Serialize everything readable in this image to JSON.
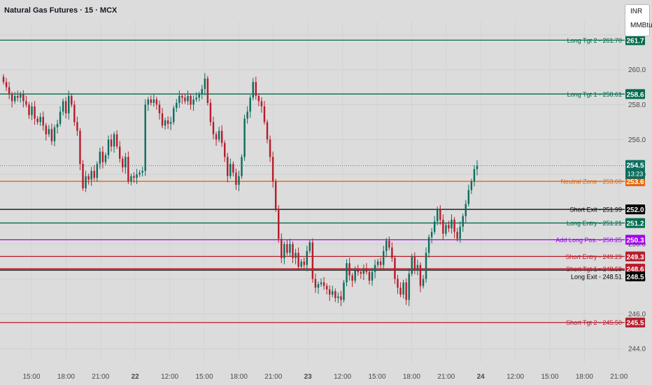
{
  "header": {
    "title": "Natural Gas Futures · 15 · MCX",
    "units": [
      "INR",
      "MMBtu"
    ]
  },
  "chart_data": {
    "type": "candlestick",
    "title": "Natural Gas Futures · 15 · MCX",
    "ylim": [
      243.2,
      262.8
    ],
    "y_ticks": [
      "244.0",
      "246.0",
      "248.0",
      "250.0",
      "252.0",
      "254.0",
      "256.0",
      "258.0",
      "260.0",
      "262.0"
    ],
    "x_ticks": [
      "15:00",
      "18:00",
      "21:00",
      "22",
      "12:00",
      "15:00",
      "18:00",
      "21:00",
      "23",
      "12:00",
      "15:00",
      "18:00",
      "21:00",
      "24",
      "12:00",
      "15:00",
      "18:00",
      "21:00"
    ],
    "grid": true,
    "colors": {
      "up": "#0d6e5f",
      "down": "#b71c2c",
      "background": "#dcdcdc"
    },
    "levels": [
      {
        "label": "Long Tgt 2 - 261.70",
        "value": 261.7,
        "tag": "261.7",
        "color": "#006b4e",
        "text_color": "#006b4e",
        "tag_text": "#ffffff"
      },
      {
        "label": "Long Tgt 1 - 258.61",
        "value": 258.61,
        "tag": "258.6",
        "color": "#006b4e",
        "text_color": "#006b4e",
        "tag_text": "#ffffff"
      },
      {
        "label": "Neutral Zone - 253.60",
        "value": 253.6,
        "tag": "253.6",
        "color": "#e8650a",
        "text_color": "#e8650a",
        "tag_text": "#ffffff"
      },
      {
        "label": "Short Exit - 251.99",
        "value": 251.99,
        "tag": "252.0",
        "color": "#000000",
        "text_color": "#000000",
        "tag_text": "#ffffff"
      },
      {
        "label": "Long Entry - 251.21",
        "value": 251.21,
        "tag": "251.2",
        "color": "#006b4e",
        "text_color": "#006b4e",
        "tag_text": "#ffffff"
      },
      {
        "label": "Add Long Pos. - 250.25",
        "value": 250.25,
        "tag": "250.3",
        "color": "#a100f2",
        "text_color": "#a100f2",
        "tag_text": "#ffffff"
      },
      {
        "label": "Short Entry - 249.29",
        "value": 249.29,
        "tag": "249.3",
        "color": "#b71c2c",
        "text_color": "#b71c2c",
        "tag_text": "#ffffff"
      },
      {
        "label": "Short Tgt 1 - 248.59",
        "value": 248.59,
        "tag": "248.6",
        "color": "#b71c2c",
        "text_color": "#b71c2c",
        "tag_text": "#ffffff"
      },
      {
        "label": "Long Exit - 248.51",
        "value": 248.51,
        "tag": "248.5",
        "color": "#000000",
        "text_color": "#000000",
        "tag_text": "#ffffff"
      },
      {
        "label": "Short Tgt 2 - 245.50",
        "value": 245.5,
        "tag": "245.5",
        "color": "#b71c2c",
        "text_color": "#b71c2c",
        "tag_text": "#ffffff"
      }
    ],
    "last_price": {
      "value": 254.5,
      "tag": "254.5",
      "countdown": "13:23",
      "color": "#0d6e5f"
    },
    "candles_close": [
      259.3,
      259.0,
      258.6,
      258.2,
      258.5,
      258.4,
      258.6,
      258.2,
      258.0,
      257.4,
      257.9,
      257.2,
      257.0,
      257.3,
      256.8,
      256.3,
      256.6,
      255.9,
      256.7,
      256.9,
      257.6,
      258.2,
      257.5,
      258.5,
      258.0,
      257.0,
      256.5,
      254.6,
      253.2,
      253.9,
      253.7,
      254.2,
      253.8,
      254.6,
      255.3,
      254.7,
      255.1,
      256.0,
      255.6,
      256.3,
      255.6,
      254.9,
      254.4,
      255.0,
      253.6,
      253.9,
      253.8,
      254.0,
      254.1,
      254.2,
      258.0,
      258.3,
      258.1,
      258.3,
      258.0,
      257.5,
      256.8,
      257.1,
      256.9,
      257.0,
      257.8,
      258.1,
      258.5,
      258.4,
      258.2,
      258.5,
      258.0,
      258.3,
      258.4,
      258.6,
      258.9,
      259.5,
      258.1,
      257.0,
      256.3,
      256.0,
      256.5,
      255.8,
      255.0,
      253.9,
      254.6,
      254.1,
      253.4,
      253.9,
      255.0,
      257.2,
      257.6,
      258.4,
      259.3,
      258.5,
      258.2,
      257.9,
      257.0,
      256.0,
      255.0,
      253.6,
      252.0,
      250.3,
      249.2,
      250.0,
      249.5,
      250.0,
      249.2,
      249.5,
      248.7,
      249.0,
      248.8,
      249.6,
      250.1,
      248.0,
      247.5,
      247.7,
      247.8,
      247.6,
      247.4,
      247.1,
      247.3,
      246.9,
      247.0,
      246.8,
      247.8,
      248.9,
      248.2,
      247.9,
      248.5,
      248.4,
      248.3,
      248.6,
      248.4,
      247.9,
      248.4,
      248.8,
      249.0,
      248.8,
      249.6,
      250.2,
      249.8,
      249.2,
      248.0,
      247.5,
      247.1,
      247.8,
      246.8,
      248.3,
      249.3,
      248.5,
      248.8,
      247.6,
      248.0,
      249.5,
      250.4,
      250.7,
      251.3,
      252.0,
      251.4,
      250.6,
      251.1,
      250.9,
      251.4,
      250.7,
      250.3,
      251.0,
      251.6,
      252.3,
      253.1,
      253.6,
      254.3,
      254.5
    ],
    "price_axis_labels_from": "y_ticks"
  }
}
